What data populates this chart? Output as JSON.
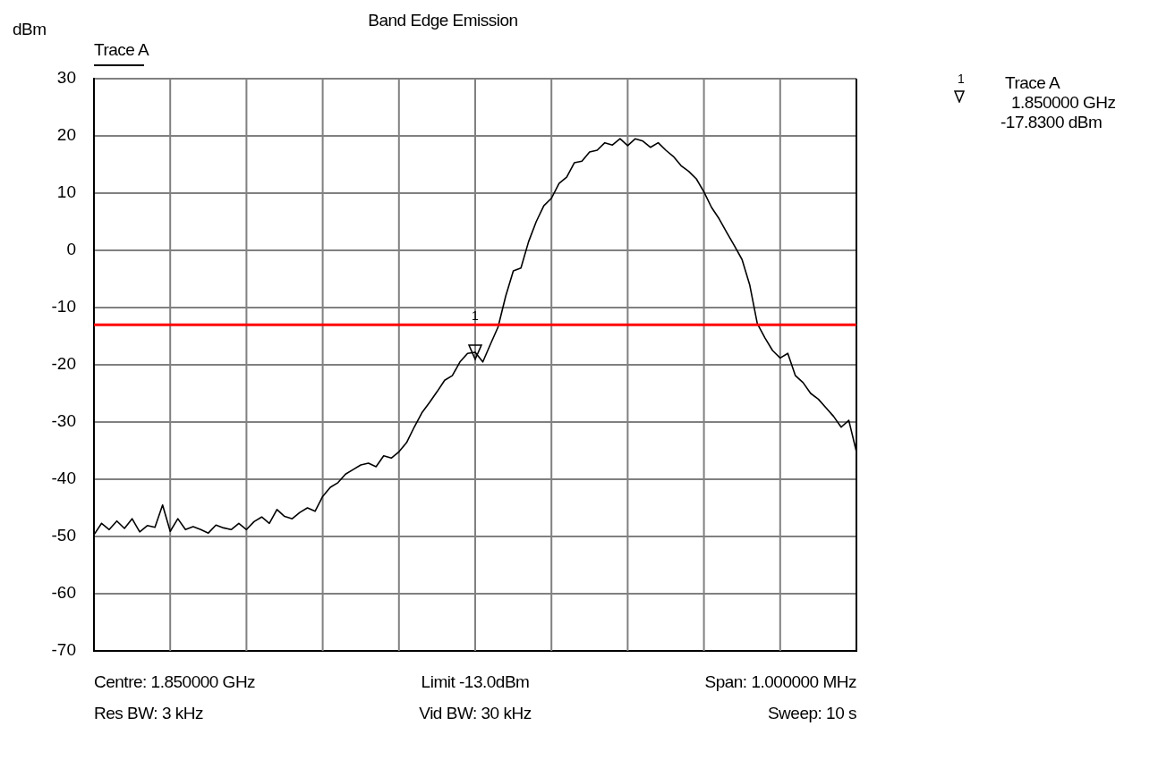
{
  "chart_data": {
    "type": "line",
    "title": "Band Edge Emission",
    "ylabel": "dBm",
    "legend": "top left",
    "tick_labels": "y",
    "grid": true,
    "marker": "none",
    "line_style": "solid",
    "categories": [
      null,
      null,
      null,
      null,
      null,
      null,
      null,
      null,
      null,
      null,
      null,
      null,
      null,
      null,
      null,
      null,
      null,
      null,
      null,
      null,
      null,
      null,
      null,
      null,
      null,
      null,
      null,
      null,
      null,
      null,
      null,
      null,
      null,
      null,
      null,
      null,
      null,
      null,
      null,
      null,
      null,
      null,
      null,
      null,
      null,
      null,
      null,
      null,
      null,
      null,
      null,
      null,
      null,
      null,
      null,
      null,
      null,
      null,
      null,
      null,
      null,
      null,
      null,
      null,
      null,
      null,
      null,
      null,
      null,
      null,
      null,
      null,
      null,
      null,
      null,
      null,
      null,
      null,
      null,
      null,
      null,
      null,
      null,
      null,
      null,
      null,
      null,
      null,
      null,
      null,
      null,
      null,
      null,
      null,
      null,
      null,
      null,
      null,
      null,
      null,
      null
    ],
    "ylim": [
      -70,
      30
    ],
    "yticks": [
      -70,
      -60,
      -50,
      -40,
      -30,
      -20,
      -10,
      0,
      10,
      20,
      30
    ],
    "series": [
      {
        "name": "Trace A",
        "color": "#000000",
        "values": [
          -49.7,
          -47.7,
          -48.8,
          -47.3,
          -48.6,
          -46.9,
          -49.2,
          -48.1,
          -48.4,
          -44.5,
          -49.1,
          -46.9,
          -48.8,
          -48.3,
          -48.8,
          -49.4,
          -48,
          -48.5,
          -48.8,
          -47.7,
          -48.8,
          -47.4,
          -46.6,
          -47.7,
          -45.3,
          -46.5,
          -46.9,
          -45.8,
          -45,
          -45.6,
          -43,
          -41.4,
          -40.6,
          -39.1,
          -38.3,
          -37.5,
          -37.2,
          -37.8,
          -35.9,
          -36.3,
          -35.2,
          -33.6,
          -30.9,
          -28.4,
          -26.6,
          -24.7,
          -22.7,
          -21.9,
          -19.5,
          -18,
          -17.8,
          -19.5,
          -16.4,
          -13.4,
          -8,
          -3.6,
          -3.1,
          1.5,
          5,
          7.8,
          9.1,
          11.7,
          12.8,
          15.3,
          15.6,
          17.2,
          17.5,
          18.8,
          18.4,
          19.5,
          18.3,
          19.5,
          19.1,
          18,
          18.8,
          17.5,
          16.4,
          14.8,
          13.8,
          12.5,
          10.2,
          7.5,
          5.5,
          3.1,
          0.8,
          -1.6,
          -6,
          -12.8,
          -15.3,
          -17.5,
          -18.8,
          -18,
          -21.9,
          -23.1,
          -25,
          -26,
          -27.5,
          -29,
          -30.9,
          -29.7,
          -35.2
        ]
      }
    ],
    "ref_lines": [
      {
        "axis": "y",
        "value": -13,
        "color": "#ff0000",
        "line_style": "solid"
      }
    ],
    "annotations": [
      {
        "text": "1",
        "y": -17.8
      },
      "Centre: 1.850000 GHz",
      "Limit -13.0dBm",
      "Span: 1.000000 MHz",
      "Res BW: 3 kHz",
      "Vid BW: 30 kHz",
      "Sweep: 10 s",
      "Trace A",
      "1.850000 GHz",
      "-17.8300 dBm"
    ]
  }
}
